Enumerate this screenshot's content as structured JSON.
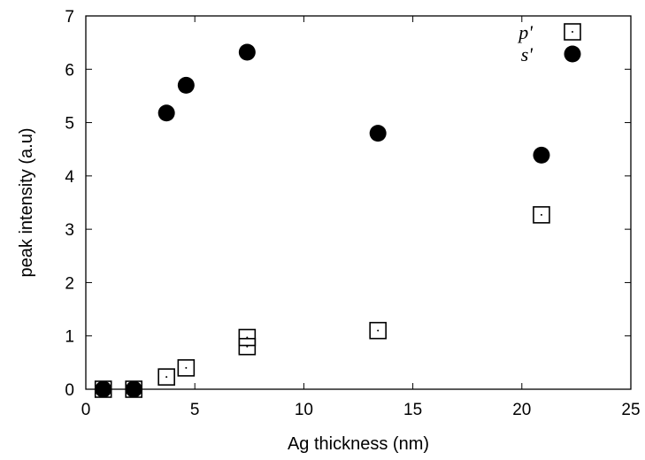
{
  "chart_data": {
    "type": "scatter",
    "title": "",
    "xlabel": "Ag thickness (nm)",
    "ylabel": "peak intensity (a.u)",
    "xlim": [
      0,
      25
    ],
    "ylim": [
      0,
      7
    ],
    "xticks": [
      0,
      5,
      10,
      15,
      20,
      25
    ],
    "yticks": [
      0,
      1,
      2,
      3,
      4,
      5,
      6,
      7
    ],
    "grid": false,
    "legend_position": "top-right",
    "series": [
      {
        "name": "p'",
        "marker": "open-square-with-dot",
        "points": [
          {
            "x": 0.8,
            "y": 0.0
          },
          {
            "x": 2.2,
            "y": 0.0
          },
          {
            "x": 3.7,
            "y": 0.23
          },
          {
            "x": 4.6,
            "y": 0.4
          },
          {
            "x": 7.4,
            "y": 0.8
          },
          {
            "x": 7.4,
            "y": 0.97
          },
          {
            "x": 13.4,
            "y": 1.1
          },
          {
            "x": 20.9,
            "y": 3.27
          }
        ]
      },
      {
        "name": "s'",
        "marker": "filled-circle",
        "points": [
          {
            "x": 0.8,
            "y": 0.0
          },
          {
            "x": 2.2,
            "y": 0.0
          },
          {
            "x": 3.7,
            "y": 5.18
          },
          {
            "x": 4.6,
            "y": 5.7
          },
          {
            "x": 7.4,
            "y": 6.32
          },
          {
            "x": 13.4,
            "y": 4.8
          },
          {
            "x": 20.9,
            "y": 4.39
          }
        ]
      }
    ]
  }
}
